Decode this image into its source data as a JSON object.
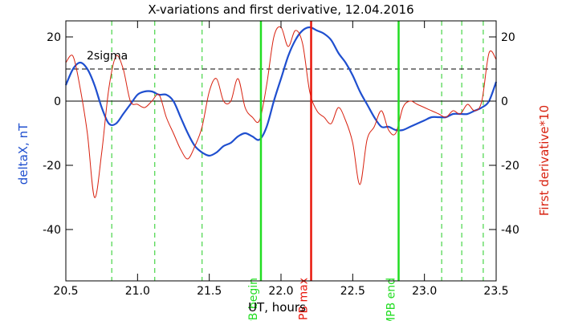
{
  "chart_data": {
    "type": "line",
    "title": "X-variations and first derivative, 12.04.2016",
    "xlabel": "UT, hours",
    "ylabel_left": "deltaX, nT",
    "ylabel_right": "First derivative*10",
    "xlim": [
      20.5,
      23.5
    ],
    "ylim": [
      -56,
      25
    ],
    "x_ticks": [
      20.5,
      21.0,
      21.5,
      22.0,
      22.5,
      23.0,
      23.5
    ],
    "x_tick_labels": [
      "20.5",
      "21.0",
      "21.5",
      "22.0",
      "22.5",
      "23.0",
      "23.5"
    ],
    "y_ticks": [
      20,
      0,
      -20,
      -40
    ],
    "y_tick_labels": [
      "20",
      "0",
      "-20",
      "-40"
    ],
    "colors": {
      "deltaX": "#1f4fcf",
      "derivative": "#d8210f",
      "begin_end": "#22dd22",
      "max": "#e8160b",
      "dashed": "#22cc22"
    },
    "sigma_level": 10,
    "sigma_label": "2sigma",
    "zero_line": 0,
    "dashed_green_lines": [
      20.82,
      21.12,
      21.45,
      23.12,
      23.26,
      23.41
    ],
    "markers": [
      {
        "x": 21.86,
        "label": "MPB begin",
        "kind": "begin_end"
      },
      {
        "x": 22.21,
        "label": "MPB max",
        "kind": "max"
      },
      {
        "x": 22.82,
        "label": "MPB end",
        "kind": "begin_end"
      }
    ],
    "series": [
      {
        "key": "deltaX",
        "name": "deltaX, nT",
        "x": [
          20.5,
          20.55,
          20.6,
          20.65,
          20.7,
          20.75,
          20.8,
          20.85,
          20.9,
          20.95,
          21.0,
          21.05,
          21.1,
          21.15,
          21.2,
          21.25,
          21.3,
          21.35,
          21.4,
          21.45,
          21.5,
          21.55,
          21.6,
          21.65,
          21.7,
          21.75,
          21.8,
          21.85,
          21.9,
          21.95,
          22.0,
          22.05,
          22.1,
          22.15,
          22.2,
          22.25,
          22.3,
          22.35,
          22.4,
          22.45,
          22.5,
          22.55,
          22.6,
          22.65,
          22.7,
          22.75,
          22.8,
          22.85,
          22.9,
          22.95,
          23.0,
          23.05,
          23.1,
          23.15,
          23.2,
          23.25,
          23.3,
          23.35,
          23.4,
          23.45,
          23.5
        ],
        "y": [
          5,
          10,
          12,
          10,
          5,
          -2,
          -7,
          -7,
          -4,
          -1,
          2,
          3,
          3,
          2,
          2,
          0,
          -5,
          -10,
          -14,
          -16,
          -17,
          -16,
          -14,
          -13,
          -11,
          -10,
          -11,
          -12,
          -8,
          0,
          7,
          14,
          19,
          22,
          23,
          22,
          21,
          19,
          15,
          12,
          8,
          3,
          -1,
          -5,
          -8,
          -8,
          -9,
          -9,
          -8,
          -7,
          -6,
          -5,
          -5,
          -5,
          -4,
          -4,
          -4,
          -3,
          -2,
          0,
          6
        ]
      },
      {
        "key": "derivative",
        "name": "First derivative*10",
        "x": [
          20.5,
          20.55,
          20.6,
          20.65,
          20.7,
          20.75,
          20.8,
          20.85,
          20.9,
          20.95,
          21.0,
          21.05,
          21.1,
          21.15,
          21.2,
          21.25,
          21.3,
          21.35,
          21.4,
          21.45,
          21.5,
          21.55,
          21.6,
          21.65,
          21.7,
          21.75,
          21.8,
          21.85,
          21.9,
          21.95,
          22.0,
          22.05,
          22.1,
          22.15,
          22.2,
          22.25,
          22.3,
          22.35,
          22.4,
          22.45,
          22.5,
          22.55,
          22.6,
          22.65,
          22.7,
          22.75,
          22.8,
          22.85,
          22.9,
          22.95,
          23.0,
          23.05,
          23.1,
          23.15,
          23.2,
          23.25,
          23.3,
          23.35,
          23.4,
          23.45,
          23.5
        ],
        "y": [
          12,
          14,
          4,
          -10,
          -30,
          -16,
          4,
          14,
          10,
          0,
          -1,
          -2,
          0,
          2,
          -5,
          -10,
          -15,
          -18,
          -14,
          -8,
          3,
          7,
          0,
          0,
          7,
          -2,
          -5,
          -6,
          5,
          20,
          23,
          17,
          22,
          18,
          3,
          -3,
          -5,
          -7,
          -2,
          -6,
          -13,
          -26,
          -12,
          -8,
          -3,
          -9,
          -10,
          -2,
          0,
          -1,
          -2,
          -3,
          -4,
          -5,
          -3,
          -4,
          -1,
          -3,
          0,
          15,
          13
        ]
      }
    ]
  }
}
